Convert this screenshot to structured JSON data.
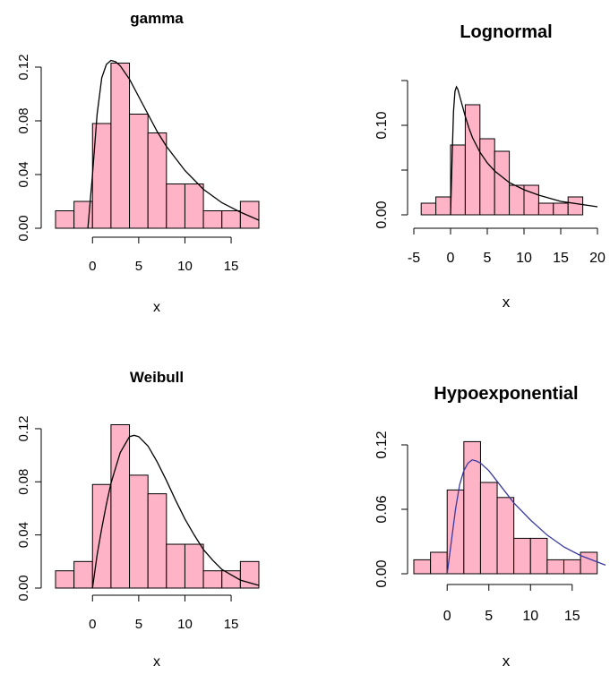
{
  "chart_data": [
    {
      "type": "bar",
      "title": "gamma",
      "xlabel": "x",
      "ylabel": "",
      "bin_edges": [
        -4,
        -2,
        0,
        2,
        4,
        6,
        8,
        10,
        12,
        14,
        16,
        18
      ],
      "values": [
        0.013,
        0.02,
        0.078,
        0.123,
        0.085,
        0.071,
        0.033,
        0.033,
        0.013,
        0.013,
        0.02
      ],
      "xlim": [
        -4,
        18
      ],
      "ylim": [
        0,
        0.124
      ],
      "x_ticks": [
        0,
        5,
        10,
        15
      ],
      "y_ticks": [
        0.0,
        0.04,
        0.08,
        0.12
      ],
      "y_tick_labels": [
        "0.00",
        "0.04",
        "0.08",
        "0.12"
      ],
      "bar_color": "#ffb3c6",
      "curve": {
        "x": [
          -0.5,
          0.0,
          0.5,
          1.0,
          1.5,
          2.0,
          2.5,
          3.0,
          4.0,
          5.0,
          6.0,
          7.0,
          8.0,
          10.0,
          12.0,
          14.0,
          16.0,
          18.0
        ],
        "y": [
          0.0,
          0.04,
          0.085,
          0.112,
          0.122,
          0.125,
          0.124,
          0.121,
          0.111,
          0.098,
          0.085,
          0.072,
          0.061,
          0.043,
          0.029,
          0.019,
          0.012,
          0.006
        ],
        "color": "#000000"
      }
    },
    {
      "type": "bar",
      "title": "Lognormal",
      "xlabel": "x",
      "ylabel": "",
      "bin_edges": [
        -4,
        -2,
        0,
        2,
        4,
        6,
        8,
        10,
        12,
        14,
        16,
        18
      ],
      "values": [
        0.013,
        0.02,
        0.078,
        0.123,
        0.085,
        0.071,
        0.033,
        0.033,
        0.013,
        0.013,
        0.02
      ],
      "xlim": [
        -5,
        20
      ],
      "ylim": [
        0,
        0.15
      ],
      "x_ticks": [
        -5,
        0,
        5,
        10,
        15,
        20
      ],
      "y_ticks": [
        0.0,
        0.05,
        0.1,
        0.15
      ],
      "y_tick_labels": [
        "0.00",
        "",
        "0.10",
        ""
      ],
      "bar_color": "#ffb3c6",
      "curve": {
        "x": [
          0.0,
          0.2,
          0.4,
          0.6,
          0.8,
          1.0,
          1.3,
          1.7,
          2.0,
          2.5,
          3.0,
          4.0,
          5.0,
          6.0,
          8.0,
          10.0,
          12.0,
          15.0,
          20.0
        ],
        "y": [
          0.0,
          0.06,
          0.115,
          0.138,
          0.143,
          0.14,
          0.131,
          0.119,
          0.11,
          0.097,
          0.086,
          0.07,
          0.058,
          0.049,
          0.036,
          0.028,
          0.022,
          0.015,
          0.009
        ],
        "color": "#000000"
      }
    },
    {
      "type": "bar",
      "title": "Weibull",
      "xlabel": "x",
      "ylabel": "",
      "bin_edges": [
        -4,
        -2,
        0,
        2,
        4,
        6,
        8,
        10,
        12,
        14,
        16,
        18
      ],
      "values": [
        0.013,
        0.02,
        0.078,
        0.123,
        0.085,
        0.071,
        0.033,
        0.033,
        0.013,
        0.013,
        0.02
      ],
      "xlim": [
        -4,
        18
      ],
      "ylim": [
        0,
        0.124
      ],
      "x_ticks": [
        0,
        5,
        10,
        15
      ],
      "y_ticks": [
        0.0,
        0.04,
        0.08,
        0.12
      ],
      "y_tick_labels": [
        "0.00",
        "0.04",
        "0.08",
        "0.12"
      ],
      "bar_color": "#ffb3c6",
      "curve": {
        "x": [
          0.0,
          0.5,
          1.0,
          1.5,
          2.0,
          3.0,
          4.0,
          4.5,
          5.0,
          6.0,
          7.0,
          8.0,
          9.0,
          10.0,
          11.0,
          12.0,
          13.0,
          14.0,
          16.0,
          18.0
        ],
        "y": [
          0.0,
          0.025,
          0.045,
          0.063,
          0.079,
          0.102,
          0.114,
          0.115,
          0.114,
          0.107,
          0.095,
          0.081,
          0.066,
          0.052,
          0.04,
          0.029,
          0.021,
          0.014,
          0.006,
          0.002
        ],
        "color": "#000000"
      }
    },
    {
      "type": "bar",
      "title": "Hypoexponential",
      "xlabel": "x",
      "ylabel": "",
      "bin_edges": [
        -4,
        -2,
        0,
        2,
        4,
        6,
        8,
        10,
        12,
        14,
        16,
        18
      ],
      "values": [
        0.013,
        0.02,
        0.078,
        0.123,
        0.085,
        0.071,
        0.033,
        0.033,
        0.013,
        0.013,
        0.02
      ],
      "xlim": [
        -4,
        19
      ],
      "ylim": [
        0,
        0.125
      ],
      "x_ticks": [
        0,
        5,
        10,
        15
      ],
      "y_ticks": [
        0.0,
        0.06,
        0.12
      ],
      "y_tick_labels": [
        "0.00",
        "0.06",
        "0.12"
      ],
      "bar_color": "#ffb3c6",
      "curve": {
        "x": [
          0.0,
          0.5,
          1.0,
          1.5,
          2.0,
          2.5,
          3.0,
          3.5,
          4.0,
          5.0,
          6.0,
          7.0,
          8.0,
          10.0,
          12.0,
          14.0,
          16.0,
          19.0
        ],
        "y": [
          0.0,
          0.03,
          0.06,
          0.083,
          0.096,
          0.103,
          0.106,
          0.105,
          0.103,
          0.096,
          0.086,
          0.076,
          0.066,
          0.05,
          0.036,
          0.025,
          0.017,
          0.008
        ],
        "color": "#3a3a9e"
      }
    }
  ]
}
